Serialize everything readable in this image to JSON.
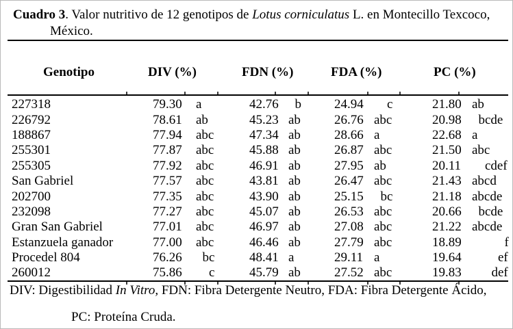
{
  "caption": {
    "label": "Cuadro 3",
    "pre_species": ". Valor nutritivo de 12 genotipos de ",
    "species": "Lotus corniculatus",
    "post_species": " L. en Montecillo Texcoco,",
    "line2": "México."
  },
  "table": {
    "headers": {
      "genotype": "Genotipo",
      "div": "DIV (%)",
      "fdn": "FDN (%)",
      "fda": "FDA (%)",
      "pc": "PC (%)"
    },
    "rows": [
      {
        "genotype": "227318",
        "div": "79.30",
        "div_sig": "a",
        "fdn": "42.76",
        "fdn_sig": "  b",
        "fda": "24.94",
        "fda_sig": "    c",
        "pc": "21.80",
        "pc_sig": "ab"
      },
      {
        "genotype": "226792",
        "div": "78.61",
        "div_sig": "ab",
        "fdn": "45.23",
        "fdn_sig": "ab",
        "fda": "26.76",
        "fda_sig": "abc",
        "pc": "20.98",
        "pc_sig": "  bcde"
      },
      {
        "genotype": "188867",
        "div": "77.94",
        "div_sig": "abc",
        "fdn": "47.34",
        "fdn_sig": "ab",
        "fda": "28.66",
        "fda_sig": "a",
        "pc": "22.68",
        "pc_sig": "a"
      },
      {
        "genotype": "255301",
        "div": "77.87",
        "div_sig": "abc",
        "fdn": "45.88",
        "fdn_sig": "ab",
        "fda": "26.87",
        "fda_sig": "abc",
        "pc": "21.50",
        "pc_sig": "abc"
      },
      {
        "genotype": "255305",
        "div": "77.92",
        "div_sig": "abc",
        "fdn": "46.91",
        "fdn_sig": "ab",
        "fda": "27.95",
        "fda_sig": "ab",
        "pc": "20.11",
        "pc_sig": "    cdef"
      },
      {
        "genotype": "San Gabriel",
        "div": "77.57",
        "div_sig": "abc",
        "fdn": "43.81",
        "fdn_sig": "ab",
        "fda": "26.47",
        "fda_sig": "abc",
        "pc": "21.43",
        "pc_sig": "abcd"
      },
      {
        "genotype": "202700",
        "div": "77.35",
        "div_sig": "abc",
        "fdn": "43.90",
        "fdn_sig": "ab",
        "fda": "25.15",
        "fda_sig": "  bc",
        "pc": "21.18",
        "pc_sig": "abcde"
      },
      {
        "genotype": "232098",
        "div": "77.27",
        "div_sig": "abc",
        "fdn": "45.07",
        "fdn_sig": "ab",
        "fda": "26.53",
        "fda_sig": "abc",
        "pc": "20.66",
        "pc_sig": "  bcde"
      },
      {
        "genotype": "Gran San Gabriel",
        "div": "77.01",
        "div_sig": "abc",
        "fdn": "46.97",
        "fdn_sig": "ab",
        "fda": "27.08",
        "fda_sig": "abc",
        "pc": "21.22",
        "pc_sig": "abcde"
      },
      {
        "genotype": "Estanzuela ganador",
        "div": "77.00",
        "div_sig": "abc",
        "fdn": "46.46",
        "fdn_sig": "ab",
        "fda": "27.79",
        "fda_sig": "abc",
        "pc": "18.89",
        "pc_sig": "          f"
      },
      {
        "genotype": "Procedel 804",
        "div": "76.26",
        "div_sig": "  bc",
        "fdn": "48.41",
        "fdn_sig": "a",
        "fda": "29.11",
        "fda_sig": "a",
        "pc": "19.64",
        "pc_sig": "        ef"
      },
      {
        "genotype": "260012",
        "div": "75.86",
        "div_sig": "    c",
        "fdn": "45.79",
        "fdn_sig": "ab",
        "fda": "27.52",
        "fda_sig": "abc",
        "pc": "19.83",
        "pc_sig": "      def"
      }
    ]
  },
  "footnote": {
    "pre_italic": "DIV: Digestibilidad ",
    "italic": "In Vitro,",
    "post_italic": " FDN: Fibra Detergente Neutro, FDA: Fibra Detergente Ácido,",
    "line2": "PC: Proteína Cruda."
  }
}
